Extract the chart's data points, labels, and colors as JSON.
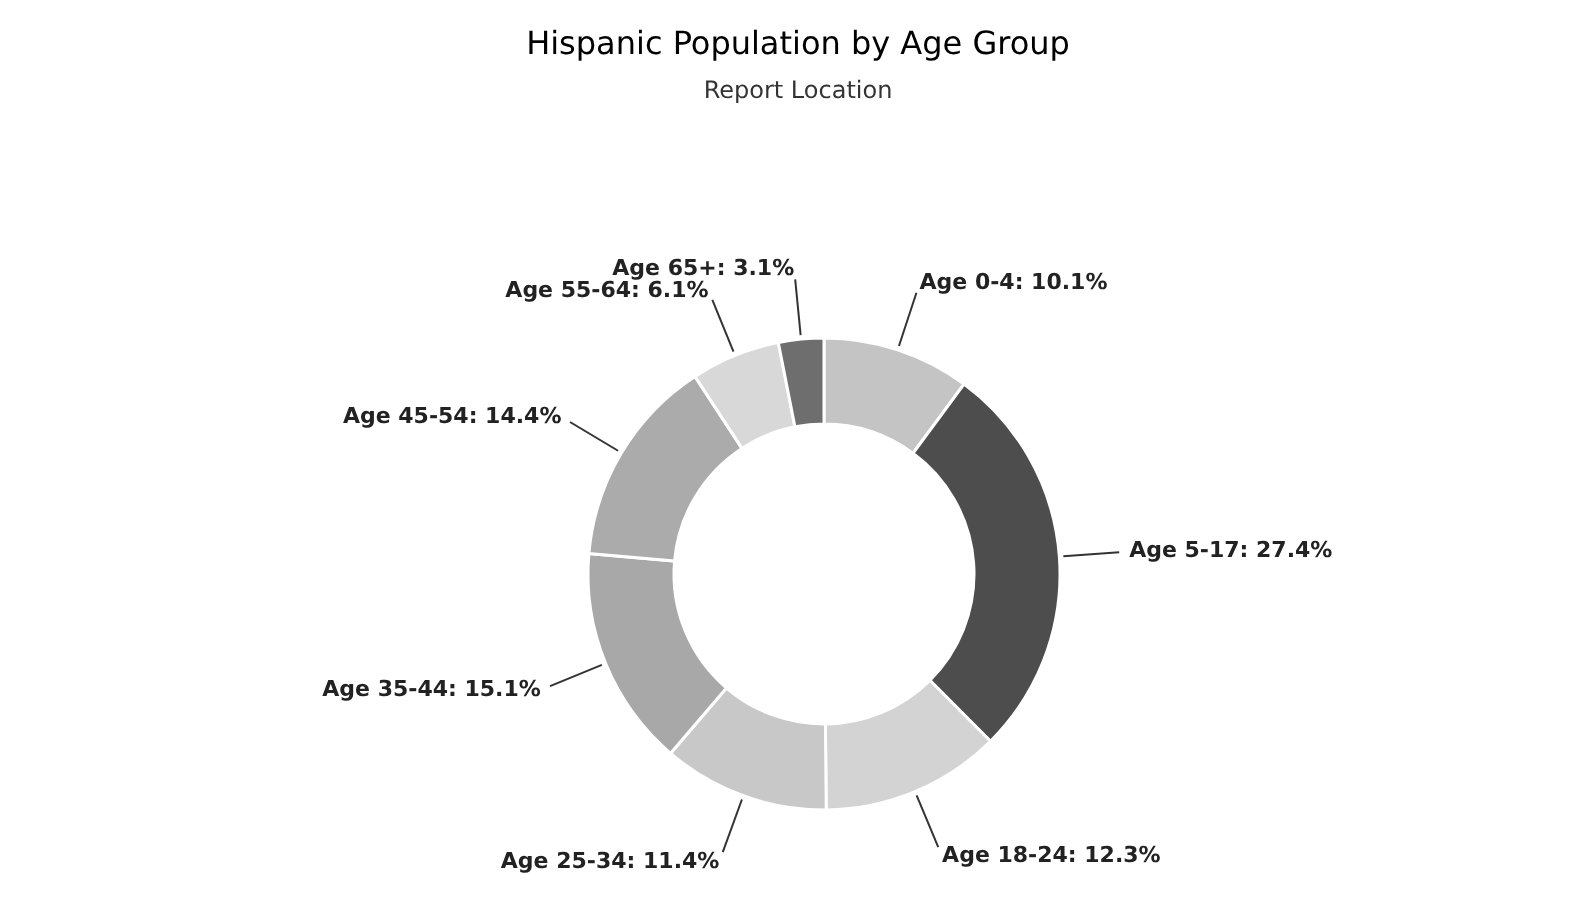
{
  "chart_data": {
    "type": "donut",
    "title": "Hispanic Population by Age Group",
    "subtitle": "Report Location",
    "categories": [
      "Age 0-4",
      "Age 5-17",
      "Age 18-24",
      "Age 25-34",
      "Age 35-44",
      "Age 45-54",
      "Age 55-64",
      "Age 65+"
    ],
    "values": [
      10.1,
      27.4,
      12.3,
      11.4,
      15.1,
      14.4,
      6.1,
      3.1
    ],
    "value_labels": [
      "10.1%",
      "27.4%",
      "12.3%",
      "11.4%",
      "15.1%",
      "14.4%",
      "6.1%",
      "3.1%"
    ],
    "colors": [
      "#c4c4c4",
      "#4d4d4d",
      "#d3d3d3",
      "#c8c8c8",
      "#a8a8a8",
      "#ababab",
      "#d8d8d8",
      "#6e6e6e"
    ]
  }
}
